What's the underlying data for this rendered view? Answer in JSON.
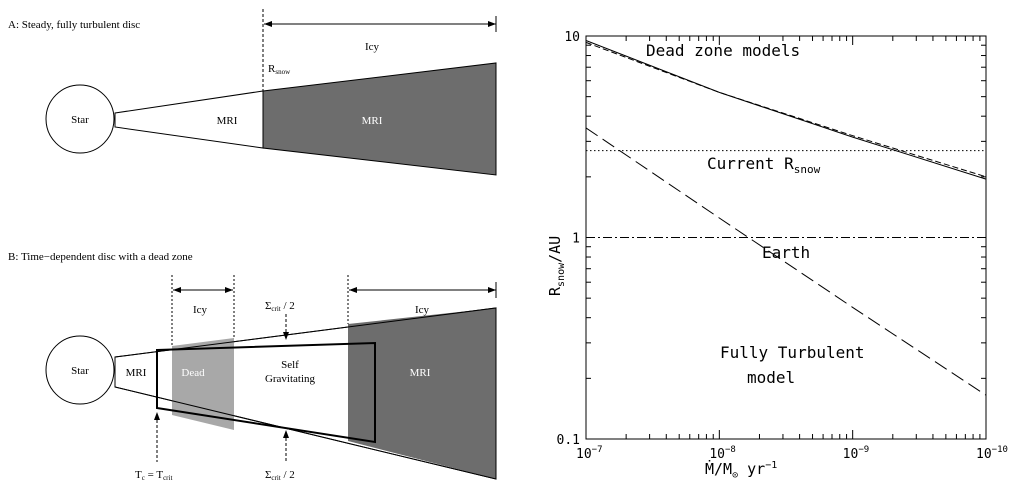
{
  "panelA": {
    "title": "A: Steady, fully turbulent disc",
    "star": "Star",
    "mri_inner": "MRI",
    "mri_outer": "MRI",
    "icy": "Icy",
    "rsnow_main": "R",
    "rsnow_sub": "snow"
  },
  "panelB": {
    "title": "B: Time−dependent disc with a dead zone",
    "star": "Star",
    "mri_inner": "MRI",
    "dead": "Dead",
    "self_grav_1": "Self",
    "self_grav_2": "Gravitating",
    "mri_outer": "MRI",
    "icy_left": "Icy",
    "icy_right": "Icy",
    "sigma_main": "Σ",
    "sigma_sub": "crit",
    "sigma_tail": " / 2",
    "tc_main": "T",
    "tc_sub": "c",
    "tc_eq": " = T",
    "tcrit_sub": "crit"
  },
  "chart_data": {
    "type": "line",
    "x_axis": {
      "label_main": "Ṁ/M",
      "label_sun": "⊙",
      "label_tail": " yr",
      "label_exp": "−1",
      "scale": "log",
      "reversed": true,
      "range": [
        1e-07,
        1e-10
      ],
      "ticks": [
        {
          "value": 1e-07,
          "base": "10",
          "exp": "−7"
        },
        {
          "value": 1e-08,
          "base": "10",
          "exp": "−8"
        },
        {
          "value": 1e-09,
          "base": "10",
          "exp": "−9"
        },
        {
          "value": 1e-10,
          "base": "10",
          "exp": "−10"
        }
      ]
    },
    "y_axis": {
      "label_main": "R",
      "label_sub": "snow",
      "label_tail": "/AU",
      "scale": "log",
      "range": [
        0.1,
        10
      ],
      "ticks": [
        {
          "value": 0.1,
          "label": "0.1"
        },
        {
          "value": 1,
          "label": "1"
        },
        {
          "value": 10,
          "label": "10"
        }
      ]
    },
    "annotations": {
      "dead_zone": "Dead zone models",
      "current_main": "Current R",
      "current_sub": "snow",
      "earth": "Earth",
      "fully_1": "Fully Turbulent",
      "fully_2": "model"
    },
    "series": [
      {
        "style": "solid",
        "x": [
          1e-07,
          1e-08,
          1e-09,
          1e-10
        ],
        "y": [
          9.5,
          5.25,
          3.15,
          1.95
        ]
      },
      {
        "style": "dashed-short",
        "x": [
          1e-07,
          1e-08,
          1e-09,
          1e-10
        ],
        "y": [
          9.3,
          5.25,
          3.2,
          2.0
        ]
      },
      {
        "style": "dashed-long",
        "x": [
          1e-07,
          1e-08,
          1e-09,
          1e-10
        ],
        "y": [
          3.5,
          1.25,
          0.45,
          0.165
        ]
      },
      {
        "style": "dotted",
        "x": [
          1e-07,
          1e-10
        ],
        "y": [
          2.7,
          2.7
        ]
      },
      {
        "style": "dash-dot",
        "x": [
          1e-07,
          1e-10
        ],
        "y": [
          1.0,
          1.0
        ]
      }
    ]
  }
}
